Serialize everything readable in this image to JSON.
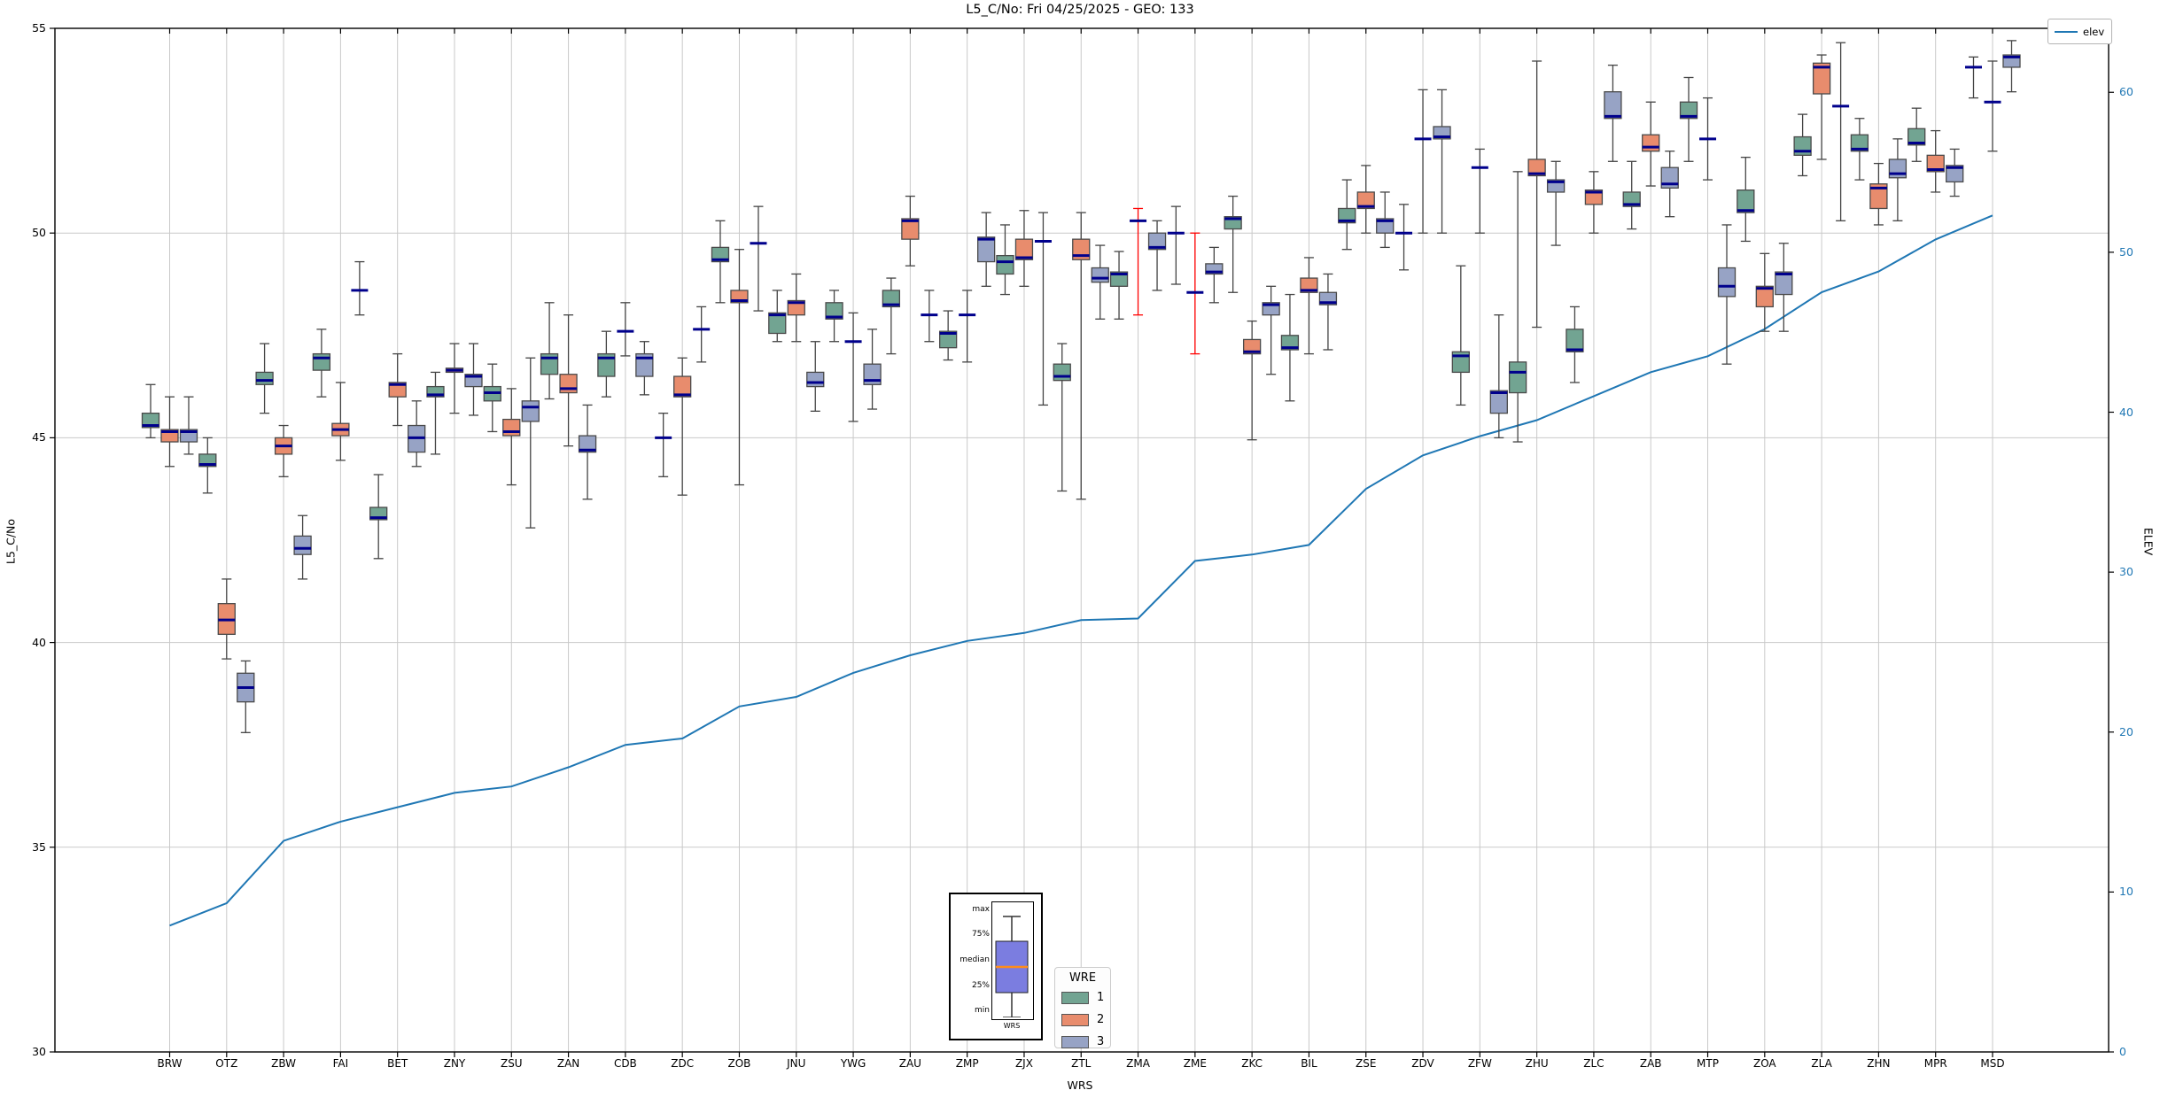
{
  "title": "L5_C/No: Fri 04/25/2025 - GEO: 133",
  "axes": {
    "y_left": {
      "label": "L5_C/No",
      "min": 30,
      "max": 55,
      "ticks": [
        30,
        35,
        40,
        45,
        50,
        55
      ]
    },
    "y_right": {
      "label": "ELEV",
      "min": 0,
      "max": 64,
      "ticks": [
        0,
        10,
        20,
        30,
        40,
        50,
        60
      ],
      "color": "#1f77b4"
    },
    "x": {
      "label": "WRS"
    }
  },
  "legend": {
    "elev_label": "elev"
  },
  "wre_legend": {
    "title": "WRE",
    "entries": [
      {
        "label": "1",
        "color": "#72a492"
      },
      {
        "label": "2",
        "color": "#e88c6d"
      },
      {
        "label": "3",
        "color": "#97a3c5"
      }
    ]
  },
  "inset": {
    "label_max": "max",
    "label_p75": "75%",
    "label_median": "median",
    "label_p25": "25%",
    "label_min": "min",
    "xlabel": "WRS",
    "box_color": "#7b7de0",
    "median_color": "#ff8c1a"
  },
  "colors": {
    "median": "#00008c",
    "whisker": "#444444",
    "red_whisker": "#ff0000",
    "grid": "#c9c9c9",
    "spine": "#000000",
    "elev_line": "#1f77b4",
    "box_border": "#4a4a4a"
  },
  "chart_data": {
    "type": "box+line",
    "title": "L5_C/No: Fri 04/25/2025 - GEO: 133",
    "xlabel": "WRS",
    "ylabel_left": "L5_C/No",
    "ylabel_right": "ELEV",
    "ylim_left": [
      30,
      55
    ],
    "ylim_right": [
      0,
      64
    ],
    "grid": true,
    "categories": [
      "BRW",
      "OTZ",
      "ZBW",
      "FAI",
      "BET",
      "ZNY",
      "ZSU",
      "ZAN",
      "CDB",
      "ZDC",
      "ZOB",
      "JNU",
      "YWG",
      "ZAU",
      "ZMP",
      "ZJX",
      "ZTL",
      "ZMA",
      "ZME",
      "ZKC",
      "BIL",
      "ZSE",
      "ZDV",
      "ZFW",
      "ZHU",
      "ZLC",
      "ZAB",
      "MTP",
      "ZOA",
      "ZLA",
      "ZHN",
      "MPR",
      "MSD"
    ],
    "box_format": "[min, q1, median, q3, max] in L5_C/No dB-Hz",
    "box_series": [
      {
        "name": "1",
        "color": "#72a492",
        "boxes": [
          [
            45.0,
            45.25,
            45.3,
            45.6,
            46.3
          ],
          [
            43.65,
            44.3,
            44.35,
            44.6,
            45.0
          ],
          [
            45.6,
            46.3,
            46.4,
            46.6,
            47.3
          ],
          [
            46.0,
            46.65,
            46.95,
            47.05,
            47.65
          ],
          [
            42.05,
            43.0,
            43.05,
            43.3,
            44.1
          ],
          [
            44.6,
            46.0,
            46.05,
            46.25,
            46.6
          ],
          [
            45.15,
            45.9,
            46.1,
            46.25,
            46.8
          ],
          [
            45.95,
            46.55,
            46.95,
            47.05,
            48.3
          ],
          [
            46.0,
            46.5,
            46.95,
            47.05,
            47.6
          ],
          [
            44.05,
            45.0,
            45.0,
            45.0,
            45.6
          ],
          [
            48.3,
            49.3,
            49.35,
            49.65,
            50.3
          ],
          [
            47.35,
            47.55,
            48.0,
            48.05,
            48.6
          ],
          [
            47.35,
            47.9,
            47.95,
            48.3,
            48.6
          ],
          [
            47.05,
            48.2,
            48.25,
            48.6,
            48.9
          ],
          [
            46.9,
            47.2,
            47.55,
            47.6,
            48.1
          ],
          [
            48.5,
            49.0,
            49.3,
            49.45,
            50.2
          ],
          [
            43.7,
            46.4,
            46.5,
            46.8,
            47.3
          ],
          [
            47.9,
            48.7,
            49.0,
            49.05,
            49.55
          ],
          [
            48.75,
            50.0,
            50.0,
            50.0,
            50.65
          ],
          [
            48.55,
            50.1,
            50.35,
            50.4,
            50.9
          ],
          [
            45.9,
            47.15,
            47.2,
            47.5,
            48.5
          ],
          [
            49.6,
            50.25,
            50.3,
            50.6,
            51.3
          ],
          [
            49.1,
            50.0,
            50.0,
            50.0,
            50.7
          ],
          [
            45.8,
            46.6,
            47.0,
            47.1,
            49.2
          ],
          [
            44.9,
            46.1,
            46.6,
            46.85,
            51.5
          ],
          [
            46.35,
            47.1,
            47.15,
            47.65,
            48.2
          ],
          [
            50.1,
            50.65,
            50.7,
            51.0,
            51.75
          ],
          [
            51.75,
            52.8,
            52.85,
            53.2,
            53.8
          ],
          [
            49.8,
            50.5,
            50.55,
            51.05,
            51.85
          ],
          [
            51.4,
            51.9,
            52.0,
            52.35,
            52.9
          ],
          [
            51.3,
            52.0,
            52.05,
            52.4,
            52.8
          ],
          [
            51.75,
            52.15,
            52.2,
            52.55,
            53.05
          ],
          [
            53.3,
            54.05,
            54.05,
            54.05,
            54.3
          ]
        ]
      },
      {
        "name": "2",
        "color": "#e88c6d",
        "red_whisker_stations": [
          "ZMA",
          "ZME"
        ],
        "boxes": [
          [
            44.3,
            44.9,
            45.15,
            45.2,
            46.0
          ],
          [
            39.6,
            40.2,
            40.55,
            40.95,
            41.55
          ],
          [
            44.05,
            44.6,
            44.8,
            45.0,
            45.3
          ],
          [
            44.45,
            45.05,
            45.2,
            45.35,
            46.35
          ],
          [
            45.3,
            46.0,
            46.3,
            46.35,
            47.05
          ],
          [
            45.6,
            46.6,
            46.65,
            46.7,
            47.3
          ],
          [
            43.85,
            45.05,
            45.15,
            45.45,
            46.2
          ],
          [
            44.8,
            46.1,
            46.2,
            46.55,
            48.0
          ],
          [
            47.0,
            47.6,
            47.6,
            47.6,
            48.3
          ],
          [
            43.6,
            46.0,
            46.05,
            46.5,
            46.95
          ],
          [
            43.85,
            48.3,
            48.35,
            48.6,
            49.6
          ],
          [
            47.35,
            48.0,
            48.3,
            48.35,
            49.0
          ],
          [
            45.4,
            47.35,
            47.35,
            47.35,
            48.05
          ],
          [
            49.2,
            49.85,
            50.3,
            50.35,
            50.9
          ],
          [
            46.85,
            48.0,
            48.0,
            48.0,
            48.6
          ],
          [
            48.7,
            49.35,
            49.4,
            49.85,
            50.55
          ],
          [
            43.5,
            49.35,
            49.45,
            49.85,
            50.5
          ],
          [
            48.0,
            50.3,
            50.3,
            50.3,
            50.6
          ],
          [
            47.05,
            48.55,
            48.55,
            48.55,
            50.0
          ],
          [
            44.95,
            47.05,
            47.1,
            47.4,
            47.85
          ],
          [
            47.05,
            48.55,
            48.6,
            48.9,
            49.4
          ],
          [
            50.0,
            50.6,
            50.65,
            51.0,
            51.65
          ],
          [
            50.0,
            52.3,
            52.3,
            52.3,
            53.5
          ],
          [
            50.0,
            51.6,
            51.6,
            51.6,
            52.05
          ],
          [
            47.7,
            51.4,
            51.45,
            51.8,
            54.2
          ],
          [
            50.0,
            50.7,
            51.0,
            51.05,
            51.5
          ],
          [
            51.15,
            52.0,
            52.1,
            52.4,
            53.2
          ],
          [
            51.3,
            52.3,
            52.3,
            52.3,
            53.3
          ],
          [
            47.6,
            48.2,
            48.65,
            48.7,
            49.5
          ],
          [
            51.8,
            53.4,
            54.05,
            54.15,
            54.35
          ],
          [
            50.2,
            50.6,
            51.1,
            51.2,
            51.7
          ],
          [
            51.0,
            51.5,
            51.55,
            51.9,
            52.5
          ],
          [
            52.0,
            53.2,
            53.2,
            53.2,
            54.2
          ]
        ]
      },
      {
        "name": "3",
        "color": "#97a3c5",
        "boxes": [
          [
            44.6,
            44.9,
            45.15,
            45.2,
            46.0
          ],
          [
            37.8,
            38.55,
            38.9,
            39.25,
            39.55
          ],
          [
            41.55,
            42.15,
            42.3,
            42.6,
            43.1
          ],
          [
            48.0,
            48.6,
            48.6,
            48.6,
            49.3
          ],
          [
            44.3,
            44.65,
            45.0,
            45.3,
            45.9
          ],
          [
            45.55,
            46.25,
            46.5,
            46.55,
            47.3
          ],
          [
            42.8,
            45.4,
            45.75,
            45.9,
            46.95
          ],
          [
            43.5,
            44.65,
            44.7,
            45.05,
            45.8
          ],
          [
            46.05,
            46.5,
            46.95,
            47.05,
            47.35
          ],
          [
            46.85,
            47.65,
            47.65,
            47.65,
            48.2
          ],
          [
            48.1,
            49.75,
            49.75,
            49.75,
            50.65
          ],
          [
            45.65,
            46.25,
            46.35,
            46.6,
            47.35
          ],
          [
            45.7,
            46.3,
            46.4,
            46.8,
            47.65
          ],
          [
            47.35,
            48.0,
            48.0,
            48.0,
            48.6
          ],
          [
            48.7,
            49.3,
            49.85,
            49.9,
            50.5
          ],
          [
            45.8,
            49.8,
            49.8,
            49.8,
            50.5
          ],
          [
            47.9,
            48.8,
            48.9,
            49.15,
            49.7
          ],
          [
            48.6,
            49.6,
            49.65,
            50.0,
            50.3
          ],
          [
            48.3,
            49.0,
            49.05,
            49.25,
            49.65
          ],
          [
            46.55,
            48.0,
            48.25,
            48.3,
            48.7
          ],
          [
            47.15,
            48.25,
            48.3,
            48.55,
            49.0
          ],
          [
            49.65,
            50.0,
            50.3,
            50.35,
            51.0
          ],
          [
            50.0,
            52.3,
            52.35,
            52.6,
            53.5
          ],
          [
            45.0,
            45.6,
            46.1,
            46.15,
            48.0
          ],
          [
            49.7,
            51.0,
            51.25,
            51.3,
            51.75
          ],
          [
            51.75,
            52.8,
            52.85,
            53.45,
            54.1
          ],
          [
            50.4,
            51.1,
            51.2,
            51.6,
            52.0
          ],
          [
            46.8,
            48.45,
            48.7,
            49.15,
            50.2
          ],
          [
            47.6,
            48.5,
            49.0,
            49.05,
            49.75
          ],
          [
            50.3,
            53.1,
            53.1,
            53.1,
            54.65
          ],
          [
            50.3,
            51.35,
            51.45,
            51.8,
            52.3
          ],
          [
            50.9,
            51.25,
            51.6,
            51.65,
            52.05
          ],
          [
            53.45,
            54.05,
            54.3,
            54.35,
            54.7
          ]
        ]
      }
    ],
    "line_series": {
      "name": "elev",
      "axis": "right",
      "color": "#1f77b4",
      "values": [
        7.9,
        9.3,
        13.2,
        14.4,
        15.3,
        16.2,
        16.6,
        17.8,
        19.2,
        19.6,
        21.6,
        22.2,
        23.7,
        24.8,
        25.7,
        26.2,
        27.0,
        27.1,
        30.7,
        31.1,
        31.7,
        35.2,
        37.3,
        38.5,
        39.5,
        41.0,
        42.5,
        43.5,
        45.2,
        47.5,
        48.8,
        50.8,
        52.3
      ]
    },
    "legend_elev": "elev",
    "wre_legend": {
      "title": "WRE",
      "entries": [
        "1",
        "2",
        "3"
      ]
    }
  }
}
